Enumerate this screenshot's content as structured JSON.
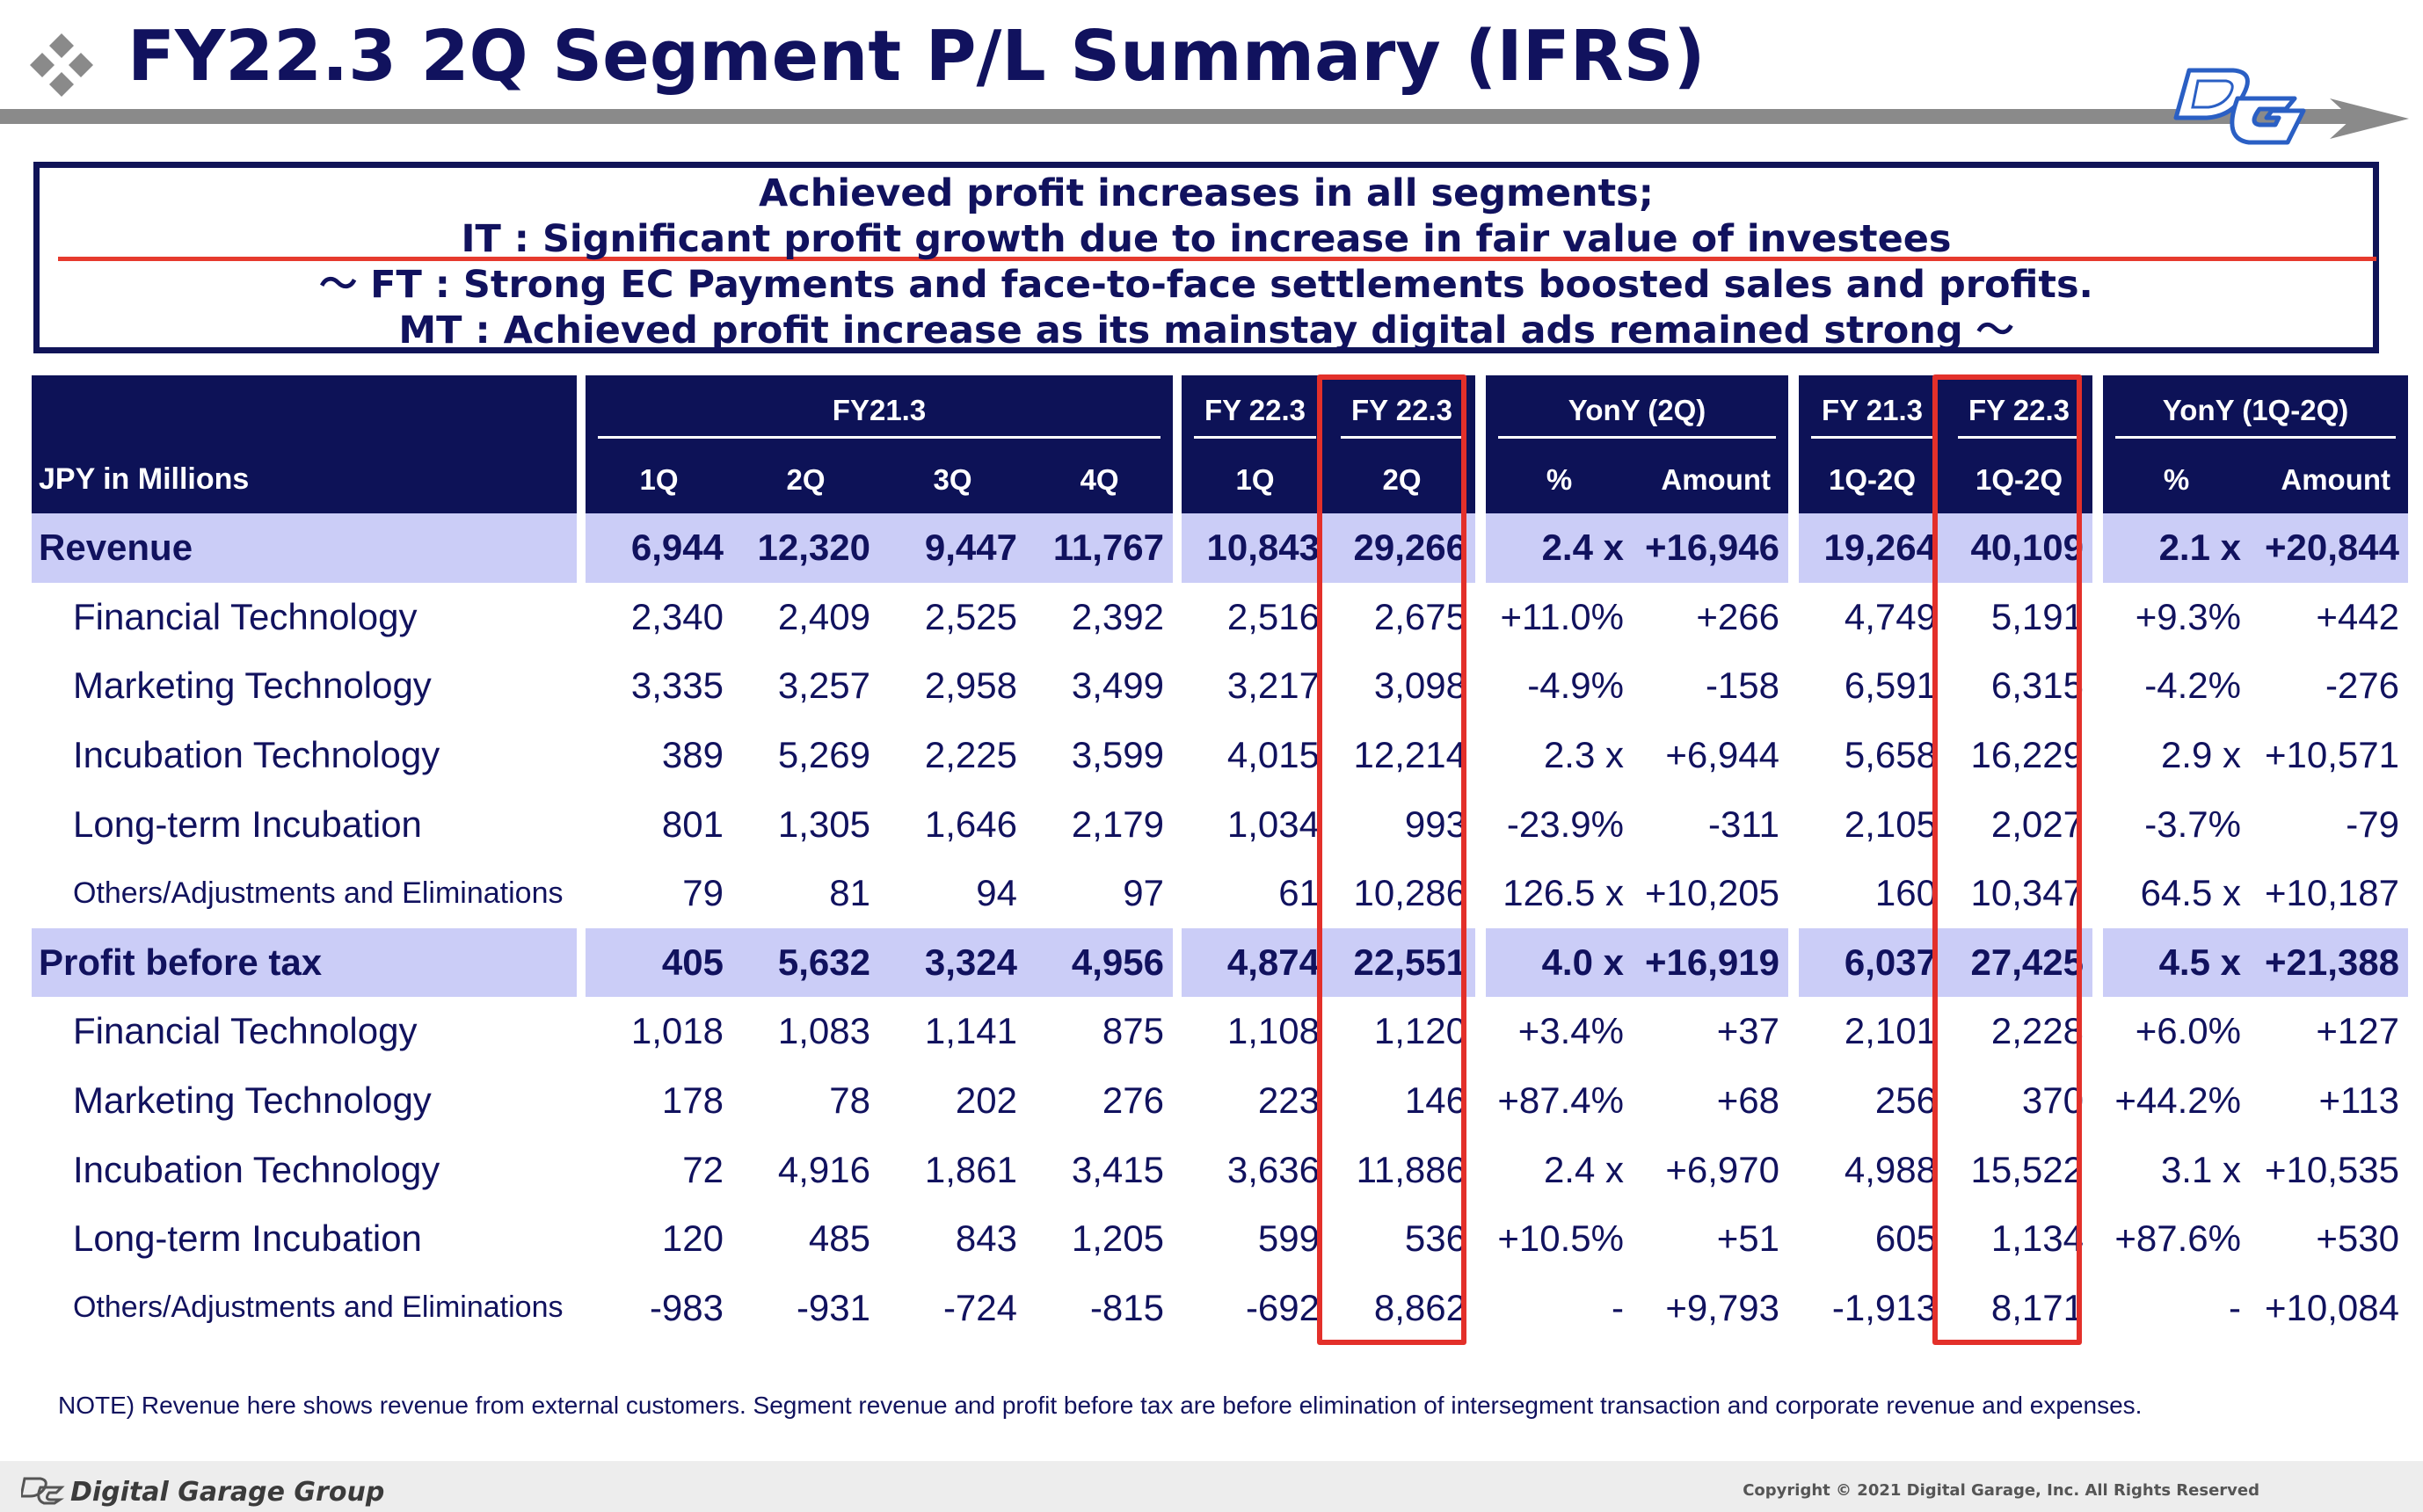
{
  "header": {
    "title": "FY22.3 2Q Segment P/L Summary (IFRS)",
    "icon": "diamond-cluster-icon",
    "logo": "dg-logo-icon"
  },
  "highlight": {
    "line1": "Achieved profit increases in all segments;",
    "line2": "IT : Significant profit growth due to increase in fair value of investees",
    "line3": "～ FT : Strong EC Payments and face-to-face settlements boosted sales and profits.",
    "line4": "MT : Achieved profit increase as its mainstay digital ads remained strong ～"
  },
  "table": {
    "unit_label": "JPY in Millions",
    "groups": {
      "fy21": "FY21.3",
      "fy22_1q": "FY 22.3",
      "fy22_2q": "FY 22.3",
      "yony_2q": "YonY (2Q)",
      "fy21_h1": "FY 21.3",
      "fy22_h1": "FY 22.3",
      "yony_h1": "YonY (1Q-2Q)"
    },
    "subheaders": [
      "1Q",
      "2Q",
      "3Q",
      "4Q",
      "1Q",
      "2Q",
      "%",
      "Amount",
      "1Q-2Q",
      "1Q-2Q",
      "%",
      "Amount"
    ],
    "rows": [
      {
        "label": "Revenue",
        "main": true,
        "values": [
          "6,944",
          "12,320",
          "9,447",
          "11,767",
          "10,843",
          "29,266",
          "2.4 x",
          "+16,946",
          "19,264",
          "40,109",
          "2.1 x",
          "+20,844"
        ]
      },
      {
        "label": "Financial Technology",
        "values": [
          "2,340",
          "2,409",
          "2,525",
          "2,392",
          "2,516",
          "2,675",
          "+11.0%",
          "+266",
          "4,749",
          "5,191",
          "+9.3%",
          "+442"
        ]
      },
      {
        "label": "Marketing Technology",
        "values": [
          "3,335",
          "3,257",
          "2,958",
          "3,499",
          "3,217",
          "3,098",
          "-4.9%",
          "-158",
          "6,591",
          "6,315",
          "-4.2%",
          "-276"
        ]
      },
      {
        "label": "Incubation Technology",
        "values": [
          "389",
          "5,269",
          "2,225",
          "3,599",
          "4,015",
          "12,214",
          "2.3 x",
          "+6,944",
          "5,658",
          "16,229",
          "2.9 x",
          "+10,571"
        ]
      },
      {
        "label": "Long-term Incubation",
        "values": [
          "801",
          "1,305",
          "1,646",
          "2,179",
          "1,034",
          "993",
          "-23.9%",
          "-311",
          "2,105",
          "2,027",
          "-3.7%",
          "-79"
        ]
      },
      {
        "label": "Others/Adjustments and Eliminations",
        "small": true,
        "values": [
          "79",
          "81",
          "94",
          "97",
          "61",
          "10,286",
          "126.5 x",
          "+10,205",
          "160",
          "10,347",
          "64.5 x",
          "+10,187"
        ]
      },
      {
        "label": "Profit before tax",
        "main": true,
        "values": [
          "405",
          "5,632",
          "3,324",
          "4,956",
          "4,874",
          "22,551",
          "4.0 x",
          "+16,919",
          "6,037",
          "27,425",
          "4.5 x",
          "+21,388"
        ]
      },
      {
        "label": "Financial Technology",
        "values": [
          "1,018",
          "1,083",
          "1,141",
          "875",
          "1,108",
          "1,120",
          "+3.4%",
          "+37",
          "2,101",
          "2,228",
          "+6.0%",
          "+127"
        ]
      },
      {
        "label": "Marketing Technology",
        "values": [
          "178",
          "78",
          "202",
          "276",
          "223",
          "146",
          "+87.4%",
          "+68",
          "256",
          "370",
          "+44.2%",
          "+113"
        ]
      },
      {
        "label": "Incubation Technology",
        "values": [
          "72",
          "4,916",
          "1,861",
          "3,415",
          "3,636",
          "11,886",
          "2.4 x",
          "+6,970",
          "4,988",
          "15,522",
          "3.1 x",
          "+10,535"
        ]
      },
      {
        "label": "Long-term Incubation",
        "values": [
          "120",
          "485",
          "843",
          "1,205",
          "599",
          "536",
          "+10.5%",
          "+51",
          "605",
          "1,134",
          "+87.6%",
          "+530"
        ]
      },
      {
        "label": "Others/Adjustments and Eliminations",
        "small": true,
        "values": [
          "-983",
          "-931",
          "-724",
          "-815",
          "-692",
          "8,862",
          "-",
          "+9,793",
          "-1,913",
          "8,171",
          "-",
          "+10,084"
        ]
      }
    ]
  },
  "note": "NOTE) Revenue here shows revenue from external customers. Segment revenue and profit before tax are before elimination of intersegment transaction and corporate revenue and expenses.",
  "footer": {
    "company": "Digital Garage Group",
    "copyright": "Copyright © 2021 Digital Garage, Inc. All Rights Reserved"
  },
  "colors": {
    "navy": "#0d1257",
    "highlight_row": "#cbcdf7",
    "accent_red": "#e3302a"
  }
}
